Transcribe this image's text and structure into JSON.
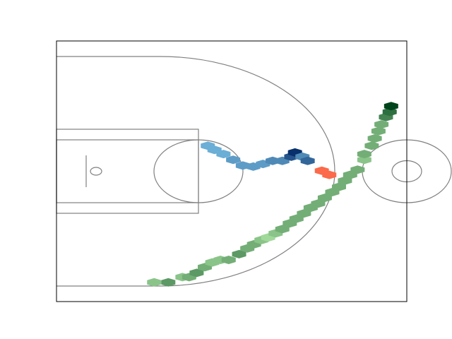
{
  "chart_data": {
    "type": "hexbin",
    "xlim": [
      0,
      47
    ],
    "ylim": [
      0,
      50
    ],
    "series": [
      {
        "colors": [
          "#a1d99b",
          "#00441b"
        ],
        "x": [
          13.1,
          15.0,
          16.9,
          17.8,
          18.8,
          19.9,
          20.9,
          22.0,
          23.1,
          24.5,
          25.6,
          26.5,
          27.5,
          28.4,
          29.4,
          30.3,
          31.3,
          32.2,
          33.2,
          34.1,
          35.1,
          36.0,
          37.0,
          37.9,
          38.7,
          39.4,
          40.4,
          41.3,
          41.3,
          42.3,
          42.7,
          43.2,
          43.6,
          44.2,
          44.7,
          44.9
        ],
        "y": [
          3.7,
          3.7,
          4.7,
          4.7,
          5.5,
          6.6,
          7.5,
          8.0,
          8.0,
          9.1,
          10.2,
          11.0,
          11.8,
          12.3,
          13.1,
          13.9,
          15.0,
          15.9,
          16.9,
          18.0,
          18.8,
          19.9,
          21.0,
          22.0,
          23.2,
          24.3,
          25.3,
          27.2,
          28.3,
          29.9,
          31.3,
          32.7,
          34.0,
          35.4,
          36.4,
          37.5
        ],
        "values": [
          2,
          4,
          2,
          3,
          4,
          3,
          2,
          2,
          3,
          4,
          3,
          3,
          2,
          1,
          2,
          3,
          3,
          3,
          3,
          3,
          3,
          3,
          3,
          3,
          3,
          3,
          3,
          2,
          3,
          3,
          3,
          3,
          3,
          5,
          6,
          8
        ]
      },
      {
        "colors": [
          "#6baed6",
          "#08306b"
        ],
        "x": [
          20.3,
          21.2,
          22.4,
          23.7,
          25.0,
          26.4,
          27.7,
          29.0,
          30.3,
          31.5,
          32.0,
          33.0,
          33.7
        ],
        "y": [
          29.9,
          29.1,
          28.3,
          27.2,
          26.1,
          25.9,
          26.4,
          27.0,
          27.0,
          27.8,
          28.6,
          27.8,
          27.0
        ],
        "values": [
          1,
          1,
          1,
          2,
          2,
          2,
          2,
          3,
          3,
          6,
          8,
          3,
          5
        ]
      },
      {
        "colors": [
          "#fb6a4a",
          "#fb6a4a"
        ],
        "x": [
          35.6,
          36.6
        ],
        "y": [
          25.1,
          24.3
        ],
        "values": [
          1,
          1
        ]
      }
    ]
  }
}
